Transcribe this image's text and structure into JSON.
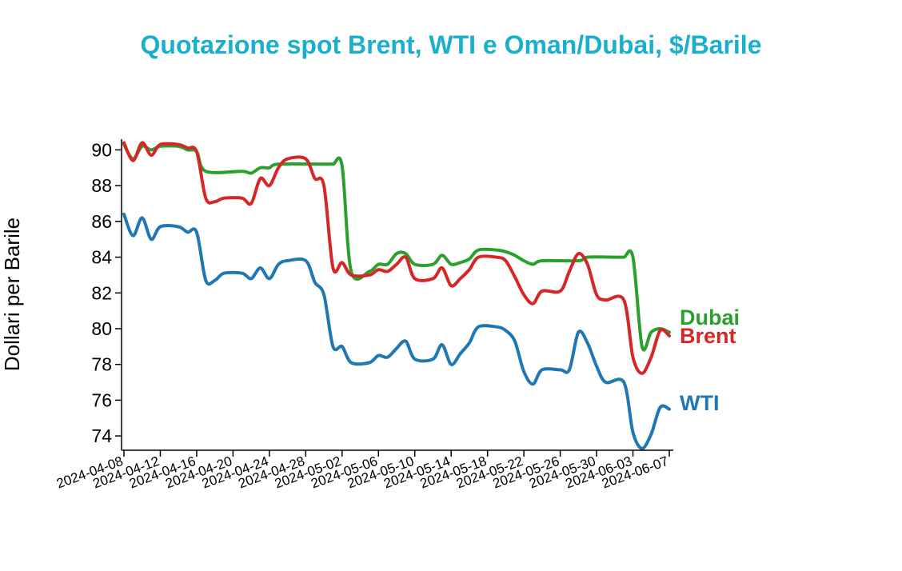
{
  "chart_data": {
    "type": "line",
    "title": "Quotazione spot Brent, WTI e Oman/Dubai, $/Barile",
    "ylabel": "Dollari per Barile",
    "xlabel": "",
    "ylim": [
      73.2,
      90.6
    ],
    "xlim": [
      "2024-04-08",
      "2024-06-07"
    ],
    "yticks": [
      74,
      76,
      78,
      80,
      82,
      84,
      86,
      88,
      90
    ],
    "xticks": [
      "2024-04-08",
      "2024-04-12",
      "2024-04-16",
      "2024-04-20",
      "2024-04-24",
      "2024-04-28",
      "2024-05-02",
      "2024-05-06",
      "2024-05-10",
      "2024-05-14",
      "2024-05-18",
      "2024-05-22",
      "2024-05-26",
      "2024-05-30",
      "2024-06-03",
      "2024-06-07"
    ],
    "grid": false,
    "legend": "inline labels at line ends",
    "series": [
      {
        "name": "Dubai",
        "color": "#2ca02c",
        "points": [
          [
            "2024-04-08",
            90.3
          ],
          [
            "2024-04-09",
            89.5
          ],
          [
            "2024-04-10",
            90.2
          ],
          [
            "2024-04-11",
            90.0
          ],
          [
            "2024-04-12",
            90.2
          ],
          [
            "2024-04-14",
            90.2
          ],
          [
            "2024-04-15",
            90.0
          ],
          [
            "2024-04-16",
            89.9
          ],
          [
            "2024-04-17",
            88.8
          ],
          [
            "2024-04-21",
            88.8
          ],
          [
            "2024-04-22",
            88.7
          ],
          [
            "2024-04-23",
            89.0
          ],
          [
            "2024-04-24",
            89.0
          ],
          [
            "2024-04-25",
            89.2
          ],
          [
            "2024-04-30",
            89.2
          ],
          [
            "2024-05-01",
            89.2
          ],
          [
            "2024-05-02",
            89.1
          ],
          [
            "2024-05-03",
            83.2
          ],
          [
            "2024-05-05",
            83.2
          ],
          [
            "2024-05-06",
            83.6
          ],
          [
            "2024-05-07",
            83.6
          ],
          [
            "2024-05-08",
            84.2
          ],
          [
            "2024-05-09",
            84.2
          ],
          [
            "2024-05-10",
            83.6
          ],
          [
            "2024-05-12",
            83.6
          ],
          [
            "2024-05-13",
            84.1
          ],
          [
            "2024-05-14",
            83.6
          ],
          [
            "2024-05-15",
            83.7
          ],
          [
            "2024-05-16",
            83.9
          ],
          [
            "2024-05-17",
            84.4
          ],
          [
            "2024-05-19",
            84.4
          ],
          [
            "2024-05-20",
            84.3
          ],
          [
            "2024-05-21",
            84.1
          ],
          [
            "2024-05-22",
            83.8
          ],
          [
            "2024-05-23",
            83.6
          ],
          [
            "2024-05-24",
            83.8
          ],
          [
            "2024-05-28",
            83.8
          ],
          [
            "2024-05-29",
            84.0
          ],
          [
            "2024-06-01",
            84.0
          ],
          [
            "2024-06-02",
            84.0
          ],
          [
            "2024-06-03",
            84.0
          ],
          [
            "2024-06-04",
            79.0
          ],
          [
            "2024-06-05",
            79.8
          ],
          [
            "2024-06-06",
            80.0
          ],
          [
            "2024-06-07",
            79.8
          ]
        ]
      },
      {
        "name": "Brent",
        "color": "#d62728",
        "points": [
          [
            "2024-04-08",
            90.4
          ],
          [
            "2024-04-09",
            89.4
          ],
          [
            "2024-04-10",
            90.4
          ],
          [
            "2024-04-11",
            89.7
          ],
          [
            "2024-04-12",
            90.3
          ],
          [
            "2024-04-14",
            90.3
          ],
          [
            "2024-04-15",
            90.1
          ],
          [
            "2024-04-16",
            89.9
          ],
          [
            "2024-04-17",
            87.3
          ],
          [
            "2024-04-18",
            87.1
          ],
          [
            "2024-04-19",
            87.3
          ],
          [
            "2024-04-21",
            87.3
          ],
          [
            "2024-04-22",
            87.0
          ],
          [
            "2024-04-23",
            88.4
          ],
          [
            "2024-04-24",
            88.0
          ],
          [
            "2024-04-25",
            89.0
          ],
          [
            "2024-04-26",
            89.5
          ],
          [
            "2024-04-28",
            89.5
          ],
          [
            "2024-04-29",
            88.4
          ],
          [
            "2024-04-30",
            88.0
          ],
          [
            "2024-05-01",
            83.4
          ],
          [
            "2024-05-02",
            83.7
          ],
          [
            "2024-05-03",
            83.0
          ],
          [
            "2024-05-05",
            83.0
          ],
          [
            "2024-05-06",
            83.3
          ],
          [
            "2024-05-07",
            83.2
          ],
          [
            "2024-05-08",
            83.6
          ],
          [
            "2024-05-09",
            84.0
          ],
          [
            "2024-05-10",
            82.8
          ],
          [
            "2024-05-12",
            82.8
          ],
          [
            "2024-05-13",
            83.4
          ],
          [
            "2024-05-14",
            82.4
          ],
          [
            "2024-05-15",
            82.8
          ],
          [
            "2024-05-16",
            83.3
          ],
          [
            "2024-05-17",
            84.0
          ],
          [
            "2024-05-19",
            84.0
          ],
          [
            "2024-05-20",
            83.8
          ],
          [
            "2024-05-21",
            82.9
          ],
          [
            "2024-05-22",
            81.9
          ],
          [
            "2024-05-23",
            81.4
          ],
          [
            "2024-05-24",
            82.1
          ],
          [
            "2024-05-26",
            82.1
          ],
          [
            "2024-05-27",
            83.2
          ],
          [
            "2024-05-28",
            84.2
          ],
          [
            "2024-05-29",
            83.6
          ],
          [
            "2024-05-30",
            81.9
          ],
          [
            "2024-05-31",
            81.6
          ],
          [
            "2024-06-02",
            81.6
          ],
          [
            "2024-06-03",
            78.4
          ],
          [
            "2024-06-04",
            77.5
          ],
          [
            "2024-06-05",
            78.4
          ],
          [
            "2024-06-06",
            79.9
          ],
          [
            "2024-06-07",
            79.6
          ]
        ]
      },
      {
        "name": "WTI",
        "color": "#1f77b4",
        "points": [
          [
            "2024-04-08",
            86.4
          ],
          [
            "2024-04-09",
            85.2
          ],
          [
            "2024-04-10",
            86.2
          ],
          [
            "2024-04-11",
            85.0
          ],
          [
            "2024-04-12",
            85.7
          ],
          [
            "2024-04-14",
            85.7
          ],
          [
            "2024-04-15",
            85.4
          ],
          [
            "2024-04-16",
            85.4
          ],
          [
            "2024-04-17",
            82.7
          ],
          [
            "2024-04-18",
            82.7
          ],
          [
            "2024-04-19",
            83.1
          ],
          [
            "2024-04-21",
            83.1
          ],
          [
            "2024-04-22",
            82.8
          ],
          [
            "2024-04-23",
            83.4
          ],
          [
            "2024-04-24",
            82.8
          ],
          [
            "2024-04-25",
            83.6
          ],
          [
            "2024-04-26",
            83.8
          ],
          [
            "2024-04-28",
            83.8
          ],
          [
            "2024-04-29",
            82.6
          ],
          [
            "2024-04-30",
            81.9
          ],
          [
            "2024-05-01",
            79.0
          ],
          [
            "2024-05-02",
            79.0
          ],
          [
            "2024-05-03",
            78.1
          ],
          [
            "2024-05-05",
            78.1
          ],
          [
            "2024-05-06",
            78.5
          ],
          [
            "2024-05-07",
            78.4
          ],
          [
            "2024-05-08",
            78.9
          ],
          [
            "2024-05-09",
            79.3
          ],
          [
            "2024-05-10",
            78.3
          ],
          [
            "2024-05-12",
            78.3
          ],
          [
            "2024-05-13",
            79.1
          ],
          [
            "2024-05-14",
            78.0
          ],
          [
            "2024-05-15",
            78.6
          ],
          [
            "2024-05-16",
            79.2
          ],
          [
            "2024-05-17",
            80.1
          ],
          [
            "2024-05-19",
            80.1
          ],
          [
            "2024-05-20",
            79.9
          ],
          [
            "2024-05-21",
            79.3
          ],
          [
            "2024-05-22",
            77.6
          ],
          [
            "2024-05-23",
            76.9
          ],
          [
            "2024-05-24",
            77.7
          ],
          [
            "2024-05-26",
            77.7
          ],
          [
            "2024-05-27",
            77.7
          ],
          [
            "2024-05-28",
            79.8
          ],
          [
            "2024-05-29",
            79.2
          ],
          [
            "2024-05-30",
            77.9
          ],
          [
            "2024-05-31",
            77.0
          ],
          [
            "2024-06-02",
            77.0
          ],
          [
            "2024-06-03",
            74.2
          ],
          [
            "2024-06-04",
            73.3
          ],
          [
            "2024-06-05",
            74.1
          ],
          [
            "2024-06-06",
            75.6
          ],
          [
            "2024-06-07",
            75.5
          ]
        ]
      }
    ]
  }
}
